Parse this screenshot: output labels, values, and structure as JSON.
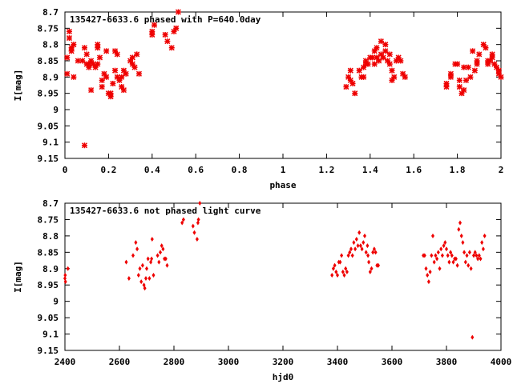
{
  "chart_data": [
    {
      "type": "scatter",
      "title": "135427-6633.6 phased with P=640.0day",
      "xlabel": "phase",
      "ylabel": "I[mag]",
      "xlim": [
        0,
        2
      ],
      "ylim": [
        9.15,
        8.7
      ],
      "y_inverted": true,
      "xticks": [
        "0",
        "0.2",
        "0.4",
        "0.6",
        "0.8",
        "1",
        "1.2",
        "1.4",
        "1.6",
        "1.8",
        "2"
      ],
      "xtick_values": [
        0,
        0.2,
        0.4,
        0.6,
        0.8,
        1.0,
        1.2,
        1.4,
        1.6,
        1.8,
        2.0
      ],
      "yticks": [
        "8.7",
        "8.75",
        "8.8",
        "8.85",
        "8.9",
        "8.95",
        "9",
        "9.05",
        "9.1",
        "9.15"
      ],
      "ytick_values": [
        8.7,
        8.75,
        8.8,
        8.85,
        8.9,
        8.95,
        9.0,
        9.05,
        9.1,
        9.15
      ],
      "marker_color": "#ee0000",
      "points": [
        [
          0.01,
          8.89
        ],
        [
          0.01,
          8.84
        ],
        [
          0.02,
          8.78
        ],
        [
          0.02,
          8.76
        ],
        [
          0.03,
          8.82
        ],
        [
          0.03,
          8.81
        ],
        [
          0.04,
          8.8
        ],
        [
          0.04,
          8.9
        ],
        [
          0.06,
          8.85
        ],
        [
          0.08,
          8.85
        ],
        [
          0.09,
          8.81
        ],
        [
          0.09,
          9.11
        ],
        [
          0.1,
          8.83
        ],
        [
          0.1,
          8.86
        ],
        [
          0.11,
          8.87
        ],
        [
          0.11,
          8.86
        ],
        [
          0.12,
          8.85
        ],
        [
          0.12,
          8.94
        ],
        [
          0.13,
          8.86
        ],
        [
          0.14,
          8.87
        ],
        [
          0.15,
          8.8
        ],
        [
          0.15,
          8.86
        ],
        [
          0.15,
          8.81
        ],
        [
          0.16,
          8.84
        ],
        [
          0.17,
          8.91
        ],
        [
          0.17,
          8.93
        ],
        [
          0.18,
          8.89
        ],
        [
          0.19,
          8.82
        ],
        [
          0.19,
          8.9
        ],
        [
          0.2,
          8.95
        ],
        [
          0.21,
          8.96
        ],
        [
          0.21,
          8.95
        ],
        [
          0.22,
          8.92
        ],
        [
          0.23,
          8.82
        ],
        [
          0.23,
          8.88
        ],
        [
          0.24,
          8.83
        ],
        [
          0.24,
          8.9
        ],
        [
          0.25,
          8.91
        ],
        [
          0.26,
          8.9
        ],
        [
          0.26,
          8.93
        ],
        [
          0.27,
          8.88
        ],
        [
          0.27,
          8.94
        ],
        [
          0.28,
          8.89
        ],
        [
          0.3,
          8.85
        ],
        [
          0.31,
          8.86
        ],
        [
          0.31,
          8.84
        ],
        [
          0.32,
          8.87
        ],
        [
          0.33,
          8.83
        ],
        [
          0.34,
          8.89
        ],
        [
          0.4,
          8.76
        ],
        [
          0.4,
          8.77
        ],
        [
          0.41,
          8.74
        ],
        [
          0.46,
          8.77
        ],
        [
          0.47,
          8.79
        ],
        [
          0.49,
          8.81
        ],
        [
          0.5,
          8.76
        ],
        [
          0.51,
          8.75
        ],
        [
          0.52,
          8.7
        ],
        [
          1.29,
          8.93
        ],
        [
          1.3,
          8.9
        ],
        [
          1.31,
          8.88
        ],
        [
          1.31,
          8.91
        ],
        [
          1.32,
          8.92
        ],
        [
          1.33,
          8.95
        ],
        [
          1.35,
          8.88
        ],
        [
          1.36,
          8.9
        ],
        [
          1.37,
          8.87
        ],
        [
          1.37,
          8.9
        ],
        [
          1.38,
          8.86
        ],
        [
          1.38,
          8.85
        ],
        [
          1.39,
          8.86
        ],
        [
          1.4,
          8.84
        ],
        [
          1.41,
          8.84
        ],
        [
          1.42,
          8.86
        ],
        [
          1.42,
          8.82
        ],
        [
          1.43,
          8.84
        ],
        [
          1.43,
          8.81
        ],
        [
          1.44,
          8.85
        ],
        [
          1.45,
          8.79
        ],
        [
          1.45,
          8.83
        ],
        [
          1.46,
          8.84
        ],
        [
          1.47,
          8.82
        ],
        [
          1.47,
          8.8
        ],
        [
          1.48,
          8.85
        ],
        [
          1.49,
          8.83
        ],
        [
          1.49,
          8.86
        ],
        [
          1.5,
          8.88
        ],
        [
          1.5,
          8.91
        ],
        [
          1.51,
          8.9
        ],
        [
          1.52,
          8.85
        ],
        [
          1.53,
          8.84
        ],
        [
          1.54,
          8.85
        ],
        [
          1.55,
          8.89
        ],
        [
          1.56,
          8.9
        ],
        [
          1.75,
          8.92
        ],
        [
          1.75,
          8.93
        ],
        [
          1.77,
          8.9
        ],
        [
          1.77,
          8.89
        ],
        [
          1.79,
          8.86
        ],
        [
          1.8,
          8.86
        ],
        [
          1.81,
          8.93
        ],
        [
          1.81,
          8.91
        ],
        [
          1.82,
          8.95
        ],
        [
          1.83,
          8.94
        ],
        [
          1.83,
          8.87
        ],
        [
          1.84,
          8.91
        ],
        [
          1.85,
          8.87
        ],
        [
          1.86,
          8.9
        ],
        [
          1.87,
          8.82
        ],
        [
          1.88,
          8.88
        ],
        [
          1.89,
          8.86
        ],
        [
          1.89,
          8.85
        ],
        [
          1.9,
          8.83
        ],
        [
          1.92,
          8.8
        ],
        [
          1.93,
          8.81
        ],
        [
          1.94,
          8.86
        ],
        [
          1.94,
          8.85
        ],
        [
          1.95,
          8.85
        ],
        [
          1.96,
          8.84
        ],
        [
          1.96,
          8.83
        ],
        [
          1.97,
          8.86
        ],
        [
          1.98,
          8.87
        ],
        [
          1.99,
          8.89
        ],
        [
          1.99,
          8.88
        ],
        [
          2.0,
          8.9
        ]
      ]
    },
    {
      "type": "scatter",
      "title": "135427-6633.6 not phased light curve",
      "xlabel": "hjd0",
      "ylabel": "I[mag]",
      "xlim": [
        2400,
        4000
      ],
      "ylim": [
        9.15,
        8.7
      ],
      "y_inverted": true,
      "xticks": [
        "2400",
        "2600",
        "2800",
        "3000",
        "3200",
        "3400",
        "3600",
        "3800",
        "4000"
      ],
      "xtick_values": [
        2400,
        2600,
        2800,
        3000,
        3200,
        3400,
        3600,
        3800,
        4000
      ],
      "yticks": [
        "8.7",
        "8.75",
        "8.8",
        "8.85",
        "8.9",
        "8.95",
        "9",
        "9.05",
        "9.1",
        "9.15"
      ],
      "ytick_values": [
        8.7,
        8.75,
        8.8,
        8.85,
        8.9,
        8.95,
        9.0,
        9.05,
        9.1,
        9.15
      ],
      "marker_color": "#ee0000",
      "points": [
        [
          2400,
          8.93
        ],
        [
          2401,
          8.92
        ],
        [
          2402,
          8.94
        ],
        [
          2411,
          8.9
        ],
        [
          2625,
          8.88
        ],
        [
          2635,
          8.93
        ],
        [
          2650,
          8.86
        ],
        [
          2660,
          8.82
        ],
        [
          2665,
          8.84
        ],
        [
          2670,
          8.92
        ],
        [
          2675,
          8.9
        ],
        [
          2680,
          8.94
        ],
        [
          2685,
          8.89
        ],
        [
          2690,
          8.95
        ],
        [
          2693,
          8.96
        ],
        [
          2697,
          8.93
        ],
        [
          2700,
          8.9
        ],
        [
          2705,
          8.87
        ],
        [
          2710,
          8.93
        ],
        [
          2715,
          8.88
        ],
        [
          2718,
          8.87
        ],
        [
          2720,
          8.81
        ],
        [
          2725,
          8.92
        ],
        [
          2740,
          8.86
        ],
        [
          2745,
          8.88
        ],
        [
          2750,
          8.85
        ],
        [
          2755,
          8.83
        ],
        [
          2760,
          8.84
        ],
        [
          2765,
          8.87
        ],
        [
          2770,
          8.87
        ],
        [
          2775,
          8.89
        ],
        [
          2830,
          8.76
        ],
        [
          2835,
          8.75
        ],
        [
          2870,
          8.77
        ],
        [
          2875,
          8.79
        ],
        [
          2885,
          8.81
        ],
        [
          2888,
          8.76
        ],
        [
          2890,
          8.75
        ],
        [
          2895,
          8.7
        ],
        [
          3380,
          8.92
        ],
        [
          3385,
          8.9
        ],
        [
          3390,
          8.89
        ],
        [
          3395,
          8.91
        ],
        [
          3400,
          8.92
        ],
        [
          3405,
          8.88
        ],
        [
          3410,
          8.88
        ],
        [
          3415,
          8.86
        ],
        [
          3420,
          8.91
        ],
        [
          3425,
          8.92
        ],
        [
          3430,
          8.9
        ],
        [
          3435,
          8.91
        ],
        [
          3440,
          8.86
        ],
        [
          3445,
          8.85
        ],
        [
          3450,
          8.84
        ],
        [
          3455,
          8.86
        ],
        [
          3460,
          8.82
        ],
        [
          3465,
          8.84
        ],
        [
          3470,
          8.81
        ],
        [
          3475,
          8.83
        ],
        [
          3480,
          8.79
        ],
        [
          3485,
          8.83
        ],
        [
          3490,
          8.84
        ],
        [
          3495,
          8.82
        ],
        [
          3500,
          8.8
        ],
        [
          3505,
          8.85
        ],
        [
          3510,
          8.83
        ],
        [
          3512,
          8.86
        ],
        [
          3515,
          8.88
        ],
        [
          3520,
          8.91
        ],
        [
          3525,
          8.9
        ],
        [
          3530,
          8.85
        ],
        [
          3535,
          8.84
        ],
        [
          3540,
          8.85
        ],
        [
          3545,
          8.89
        ],
        [
          3550,
          8.89
        ],
        [
          3715,
          8.86
        ],
        [
          3720,
          8.86
        ],
        [
          3725,
          8.9
        ],
        [
          3730,
          8.92
        ],
        [
          3735,
          8.94
        ],
        [
          3740,
          8.91
        ],
        [
          3745,
          8.86
        ],
        [
          3750,
          8.8
        ],
        [
          3755,
          8.88
        ],
        [
          3760,
          8.86
        ],
        [
          3765,
          8.87
        ],
        [
          3770,
          8.85
        ],
        [
          3775,
          8.9
        ],
        [
          3780,
          8.84
        ],
        [
          3785,
          8.86
        ],
        [
          3790,
          8.83
        ],
        [
          3795,
          8.82
        ],
        [
          3800,
          8.84
        ],
        [
          3805,
          8.86
        ],
        [
          3810,
          8.88
        ],
        [
          3815,
          8.85
        ],
        [
          3820,
          8.86
        ],
        [
          3825,
          8.88
        ],
        [
          3830,
          8.87
        ],
        [
          3835,
          8.87
        ],
        [
          3840,
          8.89
        ],
        [
          3845,
          8.78
        ],
        [
          3850,
          8.76
        ],
        [
          3855,
          8.8
        ],
        [
          3860,
          8.82
        ],
        [
          3865,
          8.85
        ],
        [
          3870,
          8.88
        ],
        [
          3875,
          8.86
        ],
        [
          3880,
          8.89
        ],
        [
          3885,
          8.85
        ],
        [
          3890,
          8.9
        ],
        [
          3895,
          9.11
        ],
        [
          3900,
          8.86
        ],
        [
          3905,
          8.85
        ],
        [
          3910,
          8.86
        ],
        [
          3915,
          8.87
        ],
        [
          3920,
          8.86
        ],
        [
          3925,
          8.87
        ],
        [
          3930,
          8.82
        ],
        [
          3935,
          8.84
        ],
        [
          3940,
          8.8
        ]
      ]
    }
  ]
}
